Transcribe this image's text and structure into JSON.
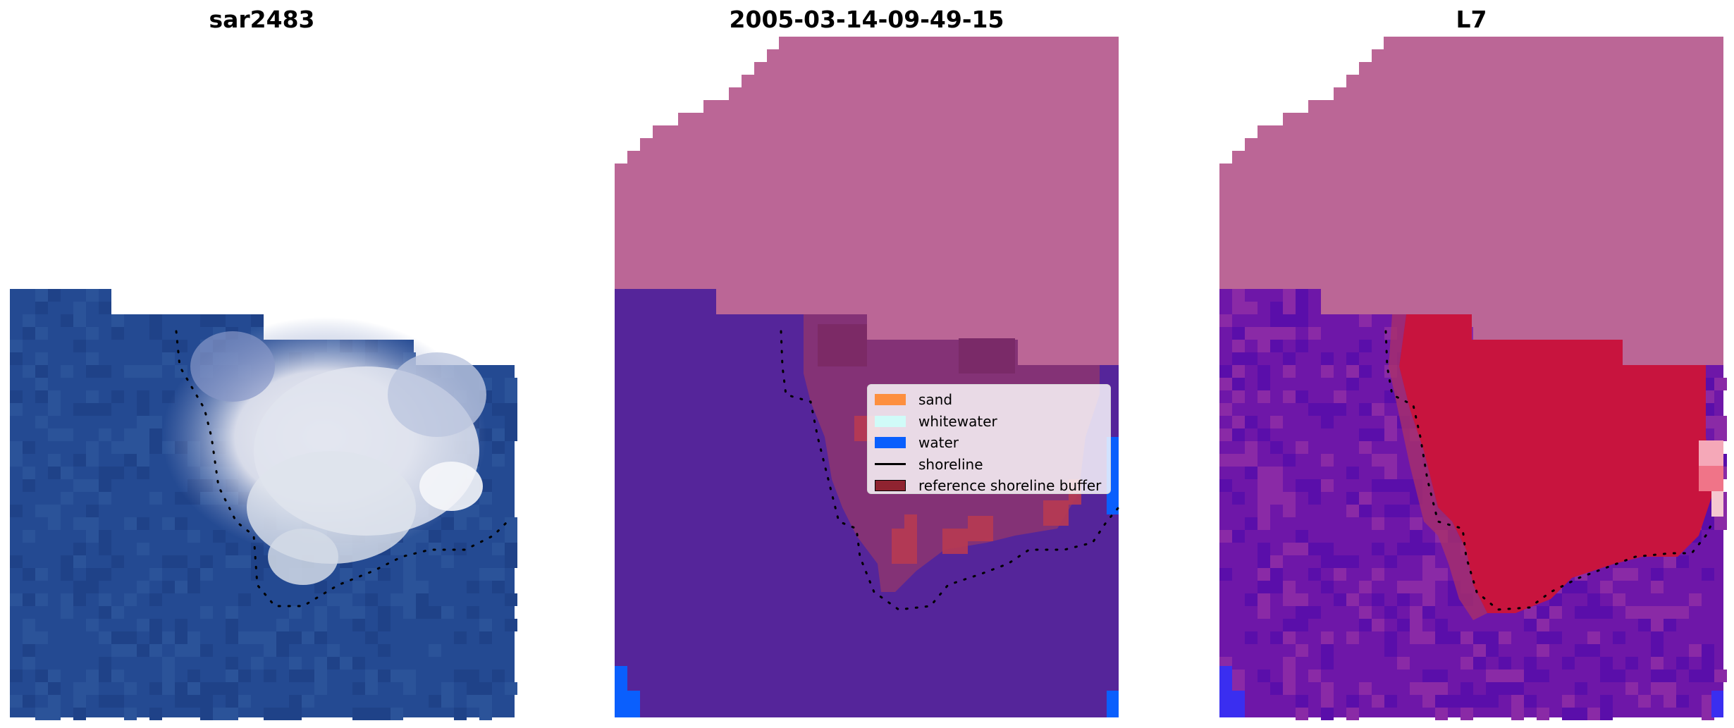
{
  "panels": [
    {
      "title": "sar2483"
    },
    {
      "title": "2005-03-14-09-49-15"
    },
    {
      "title": "L7"
    }
  ],
  "legend": {
    "items": [
      {
        "label": "sand",
        "color": "#fd8f3f"
      },
      {
        "label": "whitewater",
        "color": "#d0fbf8"
      },
      {
        "label": "water",
        "color": "#0a5ffd"
      },
      {
        "label": "shoreline",
        "color": "#000000"
      },
      {
        "label": "reference shoreline buffer",
        "color": "#8f2330"
      }
    ]
  },
  "colors": {
    "land_mask": "#bb6696",
    "water_class": "#55259a",
    "sand_overlay": "#8a3472",
    "buffer_red": "#b83a52",
    "l7_water": "#6e17a8",
    "l7_sand": "#c8143e",
    "sat_water": "#244a92",
    "sat_cloud": "#e8eaf2"
  }
}
